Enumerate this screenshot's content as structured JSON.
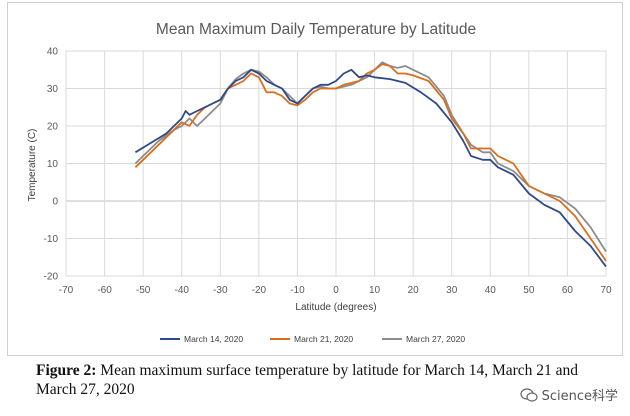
{
  "chart_data": {
    "type": "line",
    "title": "Mean Maximum Daily Temperature by Latitude",
    "xlabel": "Latitude (degrees)",
    "ylabel": "Temperature (C)",
    "xlim": [
      -70,
      70
    ],
    "ylim": [
      -20,
      40
    ],
    "xticks": [
      "-70",
      "-60",
      "-50",
      "-40",
      "-30",
      "-20",
      "-10",
      "0",
      "10",
      "20",
      "30",
      "40",
      "50",
      "60",
      "70"
    ],
    "yticks": [
      "40",
      "30",
      "20",
      "10",
      "0",
      "-10",
      "-20"
    ],
    "grid": true,
    "legend_position": "bottom",
    "series": [
      {
        "name": "March 14, 2020",
        "color": "#2e4a8b",
        "points": [
          [
            -52,
            13
          ],
          [
            -48,
            15.5
          ],
          [
            -44,
            18
          ],
          [
            -42,
            20
          ],
          [
            -40,
            22
          ],
          [
            -39,
            24
          ],
          [
            -38,
            23
          ],
          [
            -36,
            24
          ],
          [
            -34,
            25
          ],
          [
            -32,
            26
          ],
          [
            -30,
            27
          ],
          [
            -28,
            30
          ],
          [
            -26,
            32
          ],
          [
            -24,
            33
          ],
          [
            -22,
            35
          ],
          [
            -20,
            34
          ],
          [
            -18,
            32
          ],
          [
            -16,
            31
          ],
          [
            -14,
            30
          ],
          [
            -12,
            27
          ],
          [
            -10,
            26
          ],
          [
            -8,
            28
          ],
          [
            -6,
            30
          ],
          [
            -4,
            31
          ],
          [
            -2,
            31
          ],
          [
            0,
            32
          ],
          [
            2,
            34
          ],
          [
            4,
            35
          ],
          [
            6,
            33
          ],
          [
            8,
            33.5
          ],
          [
            10,
            33
          ],
          [
            14,
            32.5
          ],
          [
            18,
            31.5
          ],
          [
            22,
            29
          ],
          [
            26,
            26
          ],
          [
            30,
            21
          ],
          [
            33,
            16
          ],
          [
            35,
            12
          ],
          [
            38,
            11
          ],
          [
            40,
            11
          ],
          [
            42,
            9
          ],
          [
            46,
            7
          ],
          [
            50,
            2
          ],
          [
            54,
            -1
          ],
          [
            58,
            -3
          ],
          [
            62,
            -8
          ],
          [
            66,
            -12
          ],
          [
            70,
            -17.5
          ]
        ]
      },
      {
        "name": "March 21, 2020",
        "color": "#d86f1f",
        "points": [
          [
            -52,
            9
          ],
          [
            -50,
            11
          ],
          [
            -48,
            13
          ],
          [
            -46,
            15
          ],
          [
            -44,
            17
          ],
          [
            -42,
            19
          ],
          [
            -40,
            21
          ],
          [
            -38,
            20
          ],
          [
            -36,
            23
          ],
          [
            -34,
            25
          ],
          [
            -32,
            26
          ],
          [
            -30,
            27
          ],
          [
            -28,
            30
          ],
          [
            -26,
            31
          ],
          [
            -24,
            32
          ],
          [
            -22,
            34
          ],
          [
            -20,
            33
          ],
          [
            -18,
            29
          ],
          [
            -16,
            29
          ],
          [
            -14,
            28
          ],
          [
            -12,
            26
          ],
          [
            -10,
            25.5
          ],
          [
            -8,
            27
          ],
          [
            -6,
            29
          ],
          [
            -4,
            30
          ],
          [
            -2,
            30
          ],
          [
            0,
            30
          ],
          [
            2,
            31
          ],
          [
            4,
            31.5
          ],
          [
            6,
            32
          ],
          [
            8,
            34
          ],
          [
            10,
            35
          ],
          [
            12,
            36.5
          ],
          [
            14,
            36
          ],
          [
            16,
            34
          ],
          [
            18,
            34
          ],
          [
            20,
            33.5
          ],
          [
            24,
            32
          ],
          [
            28,
            27
          ],
          [
            30,
            22
          ],
          [
            33,
            18
          ],
          [
            35,
            14
          ],
          [
            38,
            14
          ],
          [
            40,
            14
          ],
          [
            42,
            12
          ],
          [
            46,
            10
          ],
          [
            50,
            4
          ],
          [
            54,
            2
          ],
          [
            58,
            0
          ],
          [
            62,
            -4
          ],
          [
            66,
            -10
          ],
          [
            70,
            -16
          ]
        ]
      },
      {
        "name": "March 27, 2020",
        "color": "#8c8c8c",
        "points": [
          [
            -52,
            10
          ],
          [
            -50,
            12
          ],
          [
            -48,
            14
          ],
          [
            -46,
            16
          ],
          [
            -44,
            17.5
          ],
          [
            -42,
            19
          ],
          [
            -40,
            20
          ],
          [
            -38,
            22
          ],
          [
            -36,
            20
          ],
          [
            -34,
            22
          ],
          [
            -32,
            24
          ],
          [
            -30,
            26
          ],
          [
            -28,
            30
          ],
          [
            -26,
            32.5
          ],
          [
            -24,
            34
          ],
          [
            -22,
            35
          ],
          [
            -20,
            34.5
          ],
          [
            -18,
            33
          ],
          [
            -16,
            31
          ],
          [
            -14,
            30
          ],
          [
            -12,
            28
          ],
          [
            -10,
            26
          ],
          [
            -8,
            28
          ],
          [
            -6,
            30
          ],
          [
            -4,
            30.5
          ],
          [
            -2,
            30
          ],
          [
            0,
            30
          ],
          [
            2,
            30.5
          ],
          [
            4,
            31
          ],
          [
            6,
            32
          ],
          [
            8,
            33
          ],
          [
            10,
            35
          ],
          [
            12,
            37
          ],
          [
            14,
            36
          ],
          [
            16,
            35.5
          ],
          [
            18,
            36
          ],
          [
            20,
            35
          ],
          [
            24,
            33
          ],
          [
            28,
            28
          ],
          [
            30,
            23
          ],
          [
            33,
            18
          ],
          [
            35,
            15
          ],
          [
            38,
            13
          ],
          [
            40,
            13
          ],
          [
            42,
            10
          ],
          [
            46,
            8
          ],
          [
            50,
            4
          ],
          [
            54,
            2
          ],
          [
            58,
            1
          ],
          [
            62,
            -2
          ],
          [
            66,
            -7
          ],
          [
            70,
            -13.5
          ]
        ]
      }
    ]
  },
  "caption": {
    "label": "Figure 2:",
    "text": " Mean maximum surface temperature by latitude for March 14, March 21 and March 27, 2020"
  },
  "watermark": {
    "text": "Science科学"
  }
}
